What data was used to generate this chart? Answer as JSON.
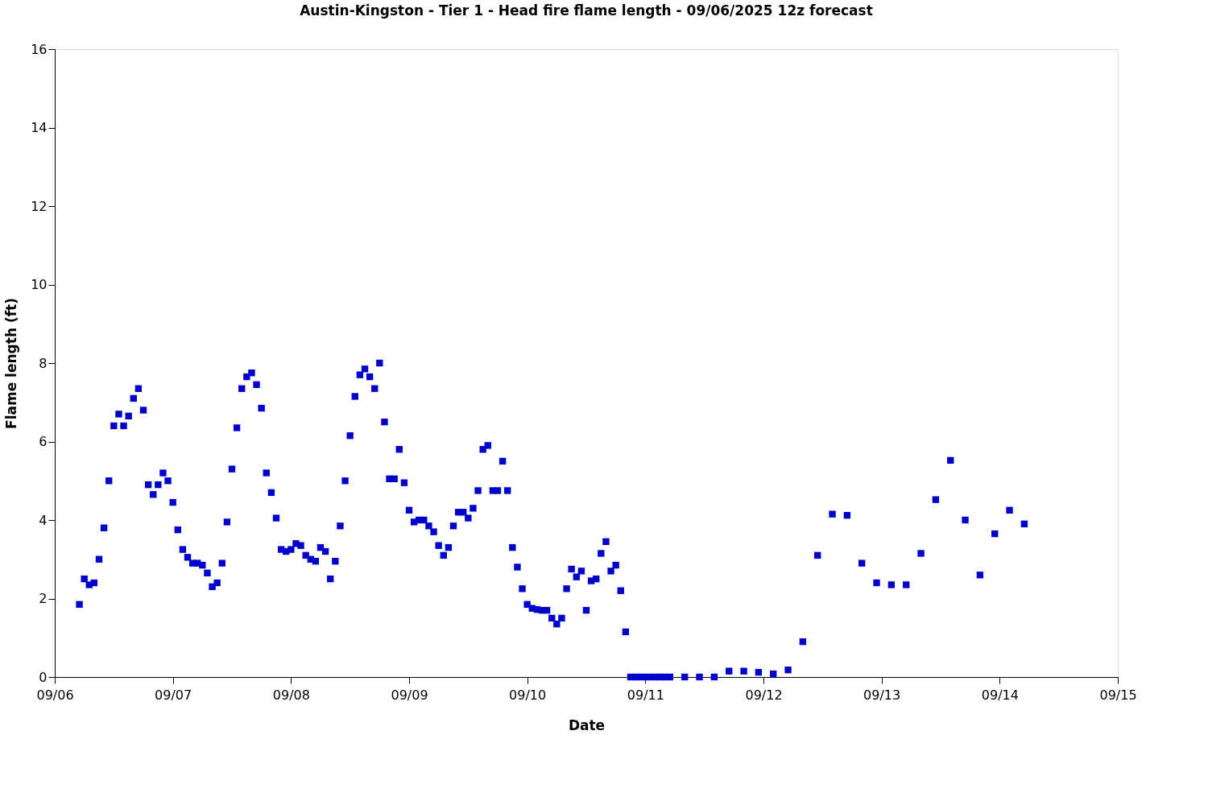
{
  "chart_data": {
    "type": "scatter",
    "title": "Austin-Kingston - Tier 1 - Head fire flame length - 09/06/2025 12z forecast",
    "xlabel": "Date",
    "ylabel": "Flame length (ft)",
    "x": [
      "2025-09-06T05:00",
      "2025-09-06T06:00",
      "2025-09-06T07:00",
      "2025-09-06T08:00",
      "2025-09-06T09:00",
      "2025-09-06T10:00",
      "2025-09-06T11:00",
      "2025-09-06T12:00",
      "2025-09-06T13:00",
      "2025-09-06T14:00",
      "2025-09-06T15:00",
      "2025-09-06T16:00",
      "2025-09-06T17:00",
      "2025-09-06T18:00",
      "2025-09-06T19:00",
      "2025-09-06T20:00",
      "2025-09-06T21:00",
      "2025-09-06T22:00",
      "2025-09-06T23:00",
      "2025-09-07T00:00",
      "2025-09-07T01:00",
      "2025-09-07T02:00",
      "2025-09-07T03:00",
      "2025-09-07T04:00",
      "2025-09-07T05:00",
      "2025-09-07T06:00",
      "2025-09-07T07:00",
      "2025-09-07T08:00",
      "2025-09-07T09:00",
      "2025-09-07T10:00",
      "2025-09-07T11:00",
      "2025-09-07T12:00",
      "2025-09-07T13:00",
      "2025-09-07T14:00",
      "2025-09-07T15:00",
      "2025-09-07T16:00",
      "2025-09-07T17:00",
      "2025-09-07T18:00",
      "2025-09-07T19:00",
      "2025-09-07T20:00",
      "2025-09-07T21:00",
      "2025-09-07T22:00",
      "2025-09-07T23:00",
      "2025-09-08T00:00",
      "2025-09-08T01:00",
      "2025-09-08T02:00",
      "2025-09-08T03:00",
      "2025-09-08T04:00",
      "2025-09-08T05:00",
      "2025-09-08T06:00",
      "2025-09-08T07:00",
      "2025-09-08T08:00",
      "2025-09-08T09:00",
      "2025-09-08T10:00",
      "2025-09-08T11:00",
      "2025-09-08T12:00",
      "2025-09-08T13:00",
      "2025-09-08T14:00",
      "2025-09-08T15:00",
      "2025-09-08T16:00",
      "2025-09-08T17:00",
      "2025-09-08T18:00",
      "2025-09-08T19:00",
      "2025-09-08T20:00",
      "2025-09-08T21:00",
      "2025-09-08T22:00",
      "2025-09-08T23:00",
      "2025-09-09T00:00",
      "2025-09-09T01:00",
      "2025-09-09T02:00",
      "2025-09-09T03:00",
      "2025-09-09T04:00",
      "2025-09-09T05:00",
      "2025-09-09T06:00",
      "2025-09-09T07:00",
      "2025-09-09T08:00",
      "2025-09-09T09:00",
      "2025-09-09T10:00",
      "2025-09-09T11:00",
      "2025-09-09T12:00",
      "2025-09-09T13:00",
      "2025-09-09T14:00",
      "2025-09-09T15:00",
      "2025-09-09T16:00",
      "2025-09-09T17:00",
      "2025-09-09T18:00",
      "2025-09-09T19:00",
      "2025-09-09T20:00",
      "2025-09-09T21:00",
      "2025-09-09T22:00",
      "2025-09-09T23:00",
      "2025-09-10T00:00",
      "2025-09-10T01:00",
      "2025-09-10T02:00",
      "2025-09-10T03:00",
      "2025-09-10T04:00",
      "2025-09-10T05:00",
      "2025-09-10T06:00",
      "2025-09-10T07:00",
      "2025-09-10T08:00",
      "2025-09-10T09:00",
      "2025-09-10T10:00",
      "2025-09-10T11:00",
      "2025-09-10T12:00",
      "2025-09-10T13:00",
      "2025-09-10T14:00",
      "2025-09-10T15:00",
      "2025-09-10T16:00",
      "2025-09-10T17:00",
      "2025-09-10T18:00",
      "2025-09-10T19:00",
      "2025-09-10T20:00",
      "2025-09-10T21:00",
      "2025-09-10T22:00",
      "2025-09-10T23:00",
      "2025-09-11T00:00",
      "2025-09-11T01:00",
      "2025-09-11T02:00",
      "2025-09-11T03:00",
      "2025-09-11T04:00",
      "2025-09-11T05:00",
      "2025-09-11T08:00",
      "2025-09-11T11:00",
      "2025-09-11T14:00",
      "2025-09-11T17:00",
      "2025-09-11T20:00",
      "2025-09-11T23:00",
      "2025-09-12T02:00",
      "2025-09-12T05:00",
      "2025-09-12T08:00",
      "2025-09-12T11:00",
      "2025-09-12T14:00",
      "2025-09-12T17:00",
      "2025-09-12T20:00",
      "2025-09-12T23:00",
      "2025-09-13T02:00",
      "2025-09-13T05:00",
      "2025-09-13T08:00",
      "2025-09-13T11:00",
      "2025-09-13T14:00",
      "2025-09-13T17:00",
      "2025-09-13T20:00",
      "2025-09-13T23:00",
      "2025-09-14T02:00",
      "2025-09-14T05:00"
    ],
    "series": [
      {
        "color": "#0000cc",
        "values": [
          1.85,
          2.5,
          2.35,
          2.4,
          3.0,
          3.8,
          5.0,
          6.4,
          6.7,
          6.4,
          6.65,
          7.1,
          7.35,
          6.8,
          4.9,
          4.65,
          4.9,
          5.2,
          5.0,
          4.45,
          3.75,
          3.25,
          3.05,
          2.9,
          2.9,
          2.85,
          2.65,
          2.3,
          2.4,
          2.9,
          3.95,
          5.3,
          6.35,
          7.35,
          7.65,
          7.75,
          7.45,
          6.85,
          5.2,
          4.7,
          4.05,
          3.25,
          3.2,
          3.25,
          3.4,
          3.35,
          3.1,
          3.0,
          2.95,
          3.3,
          3.2,
          2.5,
          2.95,
          3.85,
          5.0,
          6.15,
          7.15,
          7.7,
          7.85,
          7.65,
          7.35,
          8.0,
          6.5,
          5.05,
          5.05,
          5.8,
          4.95,
          4.25,
          3.95,
          4.0,
          4.0,
          3.85,
          3.7,
          3.35,
          3.1,
          3.3,
          3.85,
          4.2,
          4.2,
          4.05,
          4.3,
          4.75,
          5.8,
          5.9,
          4.75,
          4.75,
          5.5,
          4.75,
          3.3,
          2.8,
          2.25,
          1.85,
          1.75,
          1.72,
          1.7,
          1.7,
          1.5,
          1.35,
          1.5,
          2.25,
          2.75,
          2.55,
          2.7,
          1.7,
          2.45,
          2.5,
          3.15,
          3.45,
          2.7,
          2.85,
          2.2,
          1.15,
          0,
          0,
          0,
          0,
          0,
          0,
          0,
          0,
          0,
          0,
          0,
          0,
          0.15,
          0.15,
          0.12,
          0.08,
          0.18,
          0.9,
          3.1,
          4.15,
          4.12,
          2.9,
          2.4,
          2.35,
          2.35,
          3.15,
          4.52,
          5.52,
          4.0,
          2.6,
          3.65,
          4.25,
          3.9
        ]
      }
    ],
    "xlim": [
      "2025-09-06",
      "2025-09-15"
    ],
    "xticks": [
      {
        "value": "2025-09-06",
        "label": "09/06"
      },
      {
        "value": "2025-09-07",
        "label": "09/07"
      },
      {
        "value": "2025-09-08",
        "label": "09/08"
      },
      {
        "value": "2025-09-09",
        "label": "09/09"
      },
      {
        "value": "2025-09-10",
        "label": "09/10"
      },
      {
        "value": "2025-09-11",
        "label": "09/11"
      },
      {
        "value": "2025-09-12",
        "label": "09/12"
      },
      {
        "value": "2025-09-13",
        "label": "09/13"
      },
      {
        "value": "2025-09-14",
        "label": "09/14"
      },
      {
        "value": "2025-09-15",
        "label": "09/15"
      }
    ],
    "ylim": [
      0,
      16
    ],
    "yticks": [
      0,
      2,
      4,
      6,
      8,
      10,
      12,
      14,
      16
    ],
    "marker": "square",
    "grid": false
  }
}
